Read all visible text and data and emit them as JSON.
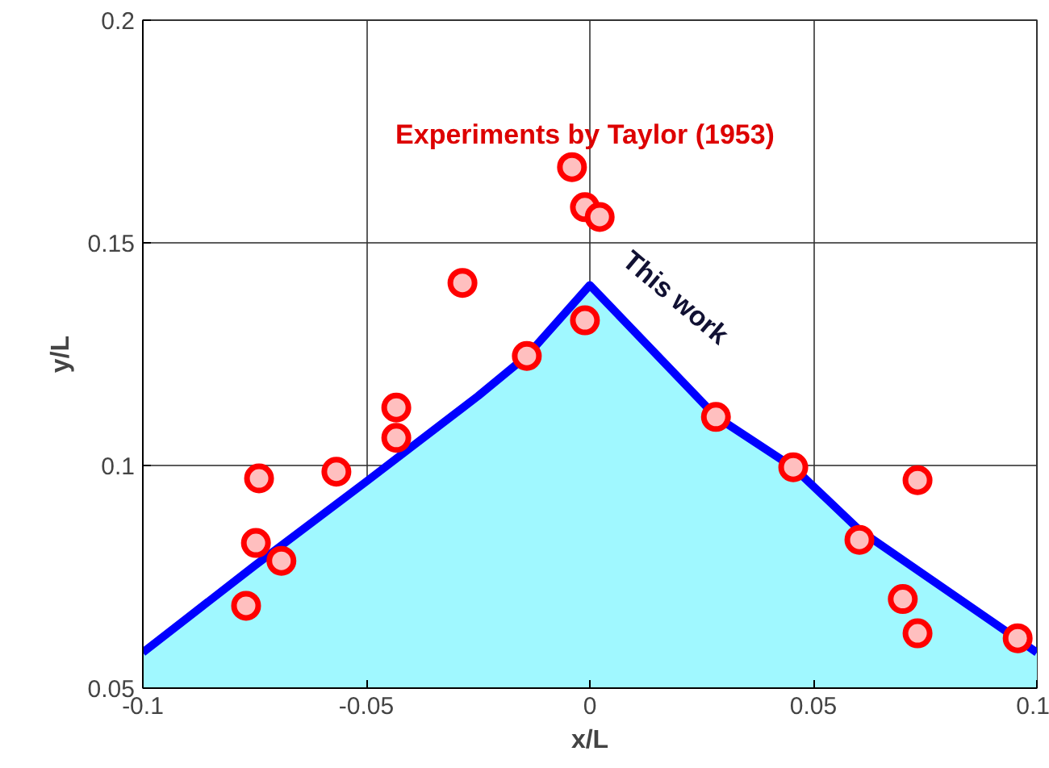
{
  "chart_data": {
    "type": "area",
    "xlabel": "x/L",
    "ylabel": "y/L",
    "xlim": [
      -0.1,
      0.1
    ],
    "ylim": [
      0.05,
      0.2
    ],
    "xticks": [
      {
        "value": -0.1,
        "label": "-0.1"
      },
      {
        "value": -0.05,
        "label": "-0.05"
      },
      0,
      0.05,
      0.1
    ],
    "yticks": [
      0.05,
      0.1,
      0.15,
      0.2
    ],
    "grid": true,
    "series": [
      {
        "color": "#0000ff",
        "colors": [
          "#a0f8ff",
          "#a0f8ff",
          "#a0f8ff",
          "#a0f8ff",
          "#a0f8ff",
          "#a0f8ff",
          "#a0f8ff",
          "#a0f8ff",
          "#a0f8ff",
          "#a0f8ff"
        ],
        "x": [
          -0.1,
          -0.075,
          -0.05,
          -0.025,
          -0.0141,
          0,
          0.0282,
          0.0455,
          0.0603,
          0.1
        ],
        "values": [
          0.058,
          0.0775,
          0.0964,
          0.1156,
          0.1246,
          0.1405,
          0.111,
          0.0996,
          0.0855,
          0.058
        ]
      },
      {
        "type": "scatter",
        "marker": "circle",
        "color": "#ff0000",
        "x": [
          -0.0769,
          -0.074,
          -0.0747,
          -0.069,
          -0.0567,
          -0.0433,
          -0.0433,
          -0.0285,
          -0.0141,
          -0.004,
          -0.0011,
          0.0022,
          -0.0011,
          0.0282,
          0.0455,
          0.0603,
          0.07,
          0.0733,
          0.0733,
          0.0957
        ],
        "values": [
          0.0685,
          0.0971,
          0.0826,
          0.0786,
          0.0986,
          0.113,
          0.1062,
          0.141,
          0.1246,
          0.167,
          0.158,
          0.1558,
          0.1326,
          0.1109,
          0.0996,
          0.0833,
          0.07,
          0.0623,
          0.0967,
          0.0612
        ]
      }
    ],
    "annotations": [
      "Experiments by Taylor (1953)",
      "This work"
    ]
  }
}
